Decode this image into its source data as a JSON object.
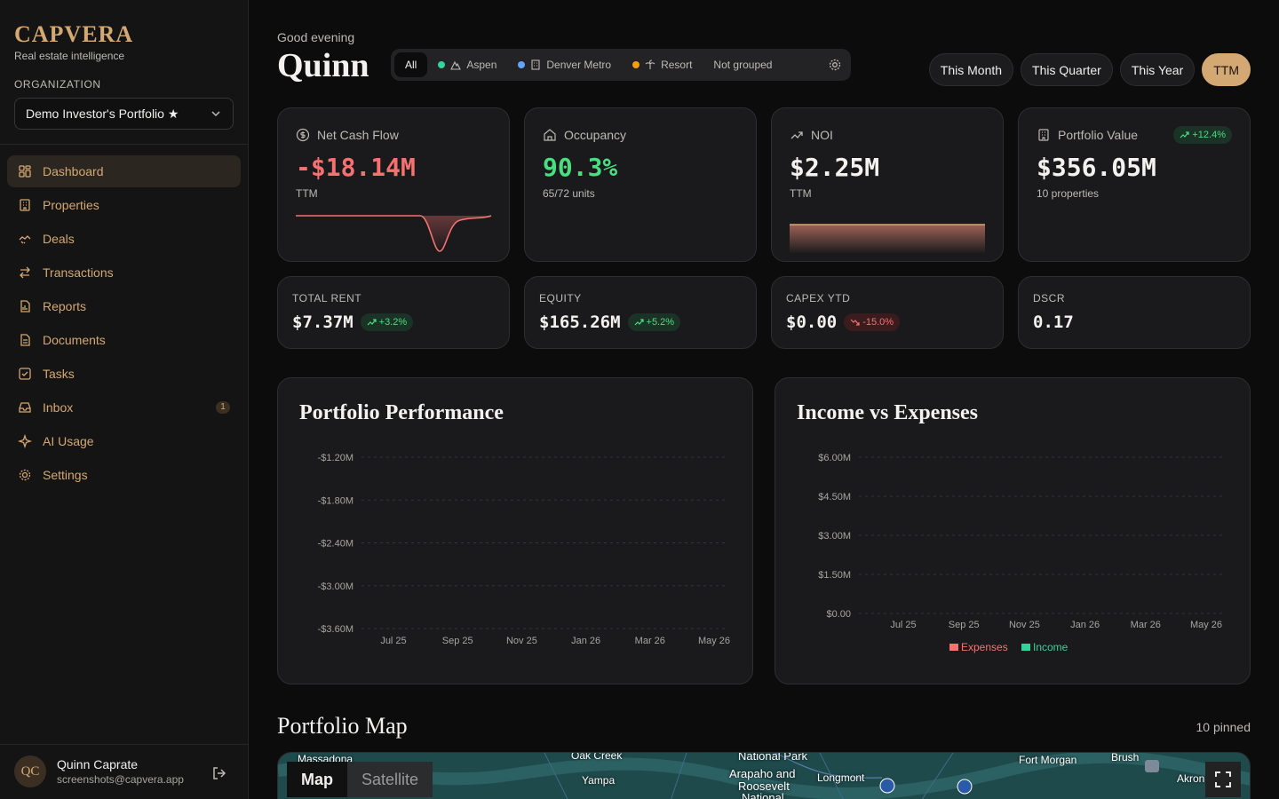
{
  "brand": {
    "name": "CAPVERA",
    "tagline": "Real estate intelligence"
  },
  "organization": {
    "label": "ORGANIZATION",
    "selected": "Demo Investor's Portfolio ★"
  },
  "nav": [
    {
      "label": "Dashboard",
      "icon": "dashboard-icon",
      "active": true
    },
    {
      "label": "Properties",
      "icon": "building-icon"
    },
    {
      "label": "Deals",
      "icon": "handshake-icon"
    },
    {
      "label": "Transactions",
      "icon": "arrows-icon"
    },
    {
      "label": "Reports",
      "icon": "report-icon"
    },
    {
      "label": "Documents",
      "icon": "document-icon"
    },
    {
      "label": "Tasks",
      "icon": "checkbox-icon"
    },
    {
      "label": "Inbox",
      "icon": "inbox-icon",
      "badge": "1"
    },
    {
      "label": "AI Usage",
      "icon": "sparkle-icon"
    },
    {
      "label": "Settings",
      "icon": "gear-icon"
    }
  ],
  "user": {
    "initials": "QC",
    "name": "Quinn Caprate",
    "email": "screenshots@capvera.app"
  },
  "header": {
    "greeting": "Good evening",
    "name": "Quinn"
  },
  "groups": [
    {
      "label": "All",
      "active": true
    },
    {
      "label": "Aspen",
      "color": "#34d399",
      "icon": "mountain-icon"
    },
    {
      "label": "Denver Metro",
      "color": "#60a5fa",
      "icon": "office-icon"
    },
    {
      "label": "Resort",
      "color": "#f59e0b",
      "icon": "palm-icon"
    },
    {
      "label": "Not grouped"
    }
  ],
  "periods": [
    "This Month",
    "This Quarter",
    "This Year",
    "TTM"
  ],
  "active_period": "TTM",
  "kpis": {
    "net_cash_flow": {
      "label": "Net Cash Flow",
      "value": "-$18.14M",
      "sub": "TTM",
      "color": "#f87171"
    },
    "occupancy": {
      "label": "Occupancy",
      "value": "90.3%",
      "sub": "65/72 units",
      "color": "#4ade80"
    },
    "noi": {
      "label": "NOI",
      "value": "$2.25M",
      "sub": "TTM",
      "color": "#f4f2ee"
    },
    "portfolio_value": {
      "label": "Portfolio Value",
      "value": "$356.05M",
      "sub": "10 properties",
      "change": "+12.4%"
    }
  },
  "stats": {
    "total_rent": {
      "label": "TOTAL RENT",
      "value": "$7.37M",
      "change": "+3.2%"
    },
    "equity": {
      "label": "EQUITY",
      "value": "$165.26M",
      "change": "+5.2%"
    },
    "capex": {
      "label": "CAPEX YTD",
      "value": "$0.00",
      "change": "-15.0%"
    },
    "dscr": {
      "label": "DSCR",
      "value": "0.17"
    }
  },
  "chart_data": [
    {
      "type": "line",
      "title": "Portfolio Performance",
      "y_ticks": [
        "-$1.20M",
        "-$1.80M",
        "-$2.40M",
        "-$3.00M",
        "-$3.60M"
      ],
      "x_ticks": [
        "Jul 25",
        "Sep 25",
        "Nov 25",
        "Jan 26",
        "Mar 26",
        "May 26"
      ],
      "ylim": [
        -3.6,
        -1.2
      ],
      "series": []
    },
    {
      "type": "bar",
      "title": "Income vs Expenses",
      "y_ticks": [
        "$6.00M",
        "$4.50M",
        "$3.00M",
        "$1.50M",
        "$0.00"
      ],
      "x_ticks": [
        "Jul 25",
        "Sep 25",
        "Nov 25",
        "Jan 26",
        "Mar 26",
        "May 26"
      ],
      "ylim": [
        0,
        6
      ],
      "legend": [
        {
          "name": "Expenses",
          "color": "#f87171"
        },
        {
          "name": "Income",
          "color": "#34d399"
        }
      ],
      "series": []
    }
  ],
  "map": {
    "title": "Portfolio Map",
    "pinned": "10 pinned",
    "tabs": [
      "Map",
      "Satellite"
    ],
    "labels": [
      "Massadona",
      "Oak Creek",
      "Yampa",
      "National Park",
      "Arapaho and",
      "Roosevelt",
      "National",
      "Longmont",
      "Fort Morgan",
      "Brush",
      "Akron"
    ]
  }
}
